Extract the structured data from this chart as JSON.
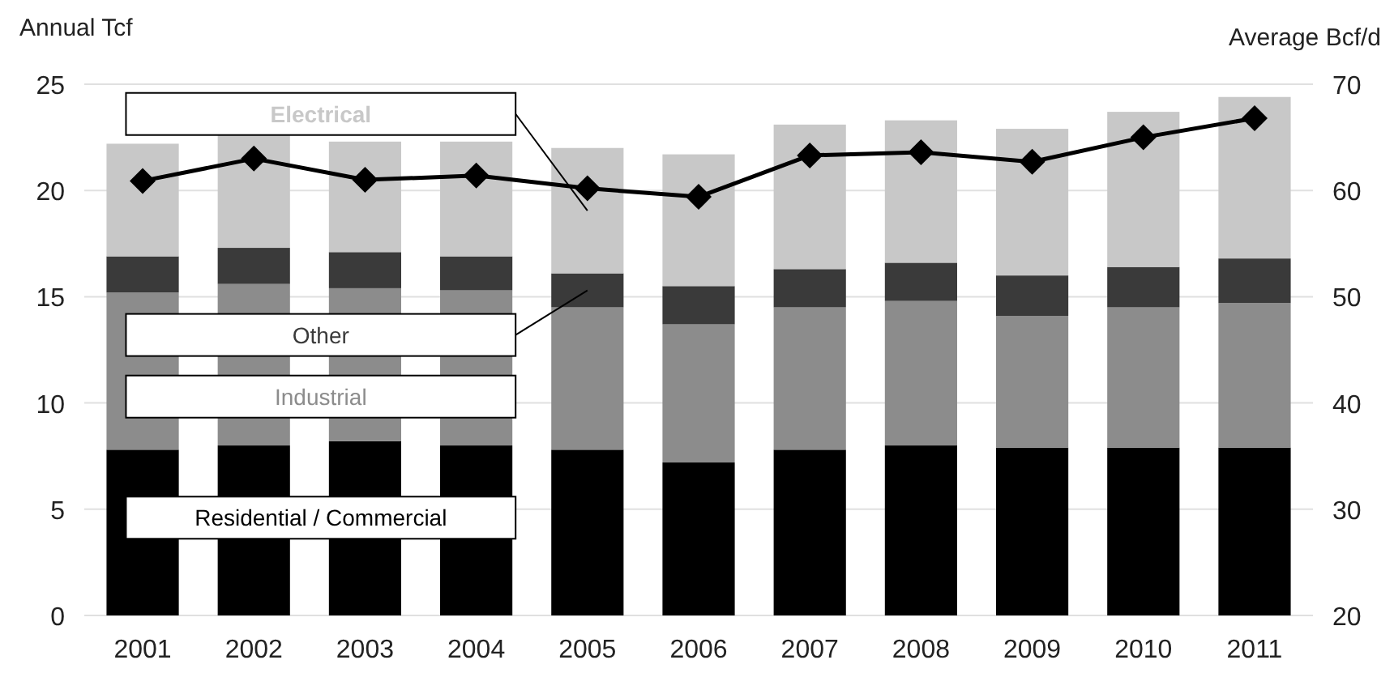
{
  "chart_data": {
    "type": "bar",
    "stacked": true,
    "ylabel": "Annual Tcf",
    "y2label": "Average Bcf/d",
    "categories": [
      "2001",
      "2002",
      "2003",
      "2004",
      "2005",
      "2006",
      "2007",
      "2008",
      "2009",
      "2010",
      "2011"
    ],
    "series": [
      {
        "name": "Residential / Commercial",
        "color": "#000000",
        "values": [
          7.8,
          8.0,
          8.2,
          8.0,
          7.8,
          7.2,
          7.8,
          8.0,
          7.9,
          7.9,
          7.9
        ]
      },
      {
        "name": "Industrial",
        "color": "#8c8c8c",
        "values": [
          7.4,
          7.6,
          7.2,
          7.3,
          6.7,
          6.5,
          6.7,
          6.8,
          6.2,
          6.6,
          6.8
        ]
      },
      {
        "name": "Other",
        "color": "#3a3a3a",
        "values": [
          1.7,
          1.7,
          1.7,
          1.6,
          1.6,
          1.8,
          1.8,
          1.8,
          1.9,
          1.9,
          2.1
        ]
      },
      {
        "name": "Electrical",
        "color": "#c8c8c8",
        "values": [
          5.3,
          5.4,
          5.2,
          5.4,
          5.9,
          6.2,
          6.8,
          6.7,
          6.9,
          7.3,
          7.6
        ]
      },
      {
        "type": "line",
        "axis": "y2",
        "color": "#000000",
        "marker": "diamond",
        "values": [
          60.9,
          63.0,
          61.0,
          61.4,
          60.2,
          59.4,
          63.3,
          63.6,
          62.7,
          65.0,
          66.8
        ]
      }
    ],
    "ylim": [
      0,
      25
    ],
    "yticks": [
      0,
      5,
      10,
      15,
      20,
      25
    ],
    "y2lim": [
      20,
      70
    ],
    "y2ticks": [
      20,
      30,
      40,
      50,
      60,
      70
    ],
    "grid": "y"
  }
}
